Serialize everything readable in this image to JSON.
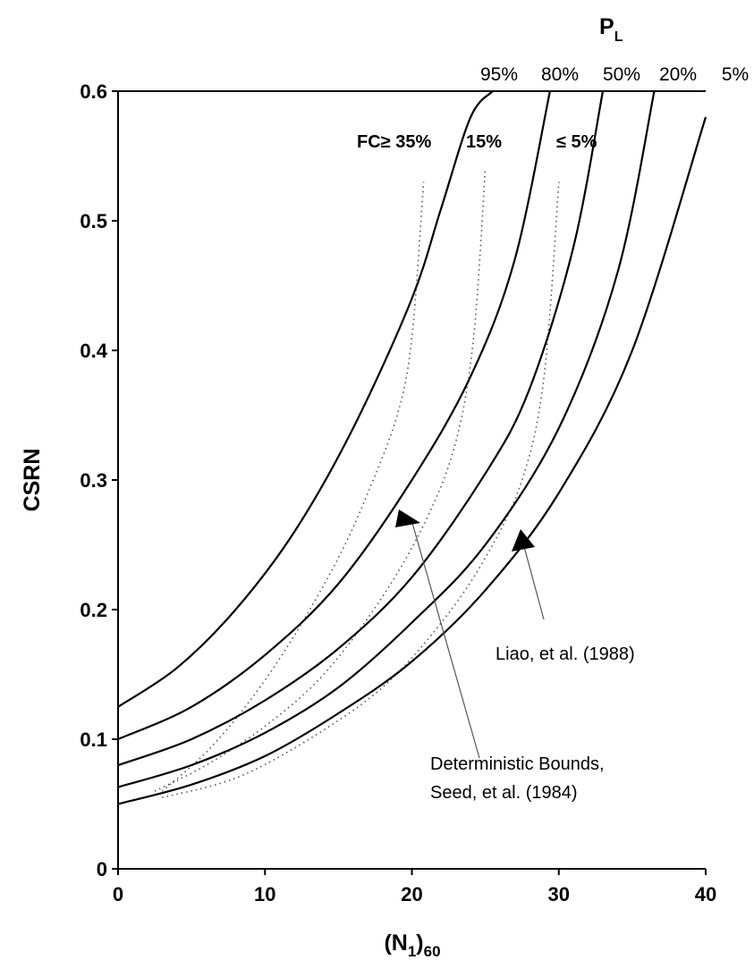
{
  "chart_data": {
    "type": "line",
    "title": "",
    "xlabel": "(N1)60",
    "ylabel": "CSRN",
    "xlim": [
      0,
      40
    ],
    "ylim": [
      0,
      0.6
    ],
    "x_ticks": [
      "0",
      "10",
      "20",
      "30",
      "40"
    ],
    "y_ticks": [
      "0",
      "0.1",
      "0.2",
      "0.3",
      "0.4",
      "0.5",
      "0.6"
    ],
    "grid": false,
    "legend": "none",
    "top_label": {
      "main": "P",
      "sub": "L"
    },
    "probability_curves": [
      {
        "label": "95%",
        "x": [
          0,
          4,
          8,
          12,
          16,
          20,
          22,
          24,
          25.5
        ],
        "y": [
          0.125,
          0.155,
          0.2,
          0.26,
          0.34,
          0.44,
          0.51,
          0.58,
          0.6
        ]
      },
      {
        "label": "80%",
        "x": [
          0,
          5,
          10,
          15,
          20,
          24,
          27,
          29.4
        ],
        "y": [
          0.1,
          0.125,
          0.165,
          0.22,
          0.3,
          0.38,
          0.47,
          0.6
        ]
      },
      {
        "label": "50%",
        "x": [
          0,
          5,
          10,
          15,
          20,
          25,
          28,
          31,
          33
        ],
        "y": [
          0.08,
          0.1,
          0.13,
          0.17,
          0.225,
          0.305,
          0.37,
          0.48,
          0.6
        ]
      },
      {
        "label": "20%",
        "x": [
          0,
          5,
          10,
          15,
          20,
          25,
          30,
          34,
          36.5
        ],
        "y": [
          0.063,
          0.08,
          0.105,
          0.14,
          0.19,
          0.25,
          0.34,
          0.46,
          0.6
        ]
      },
      {
        "label": "5%",
        "x": [
          0,
          5,
          10,
          15,
          20,
          25,
          30,
          35,
          40
        ],
        "y": [
          0.05,
          0.065,
          0.087,
          0.12,
          0.16,
          0.215,
          0.29,
          0.4,
          0.58
        ]
      }
    ],
    "deterministic_bounds": [
      {
        "label": "FC≥ 35%",
        "x": [
          3,
          6,
          9,
          12,
          15,
          17,
          19,
          20,
          20.8
        ],
        "y": [
          0.06,
          0.09,
          0.13,
          0.18,
          0.24,
          0.29,
          0.35,
          0.41,
          0.53
        ]
      },
      {
        "label": "15%",
        "x": [
          2.5,
          6,
          10,
          14,
          18,
          21,
          23,
          24.2,
          25
        ],
        "y": [
          0.06,
          0.08,
          0.11,
          0.15,
          0.21,
          0.27,
          0.33,
          0.41,
          0.54
        ]
      },
      {
        "label": "≤ 5%",
        "x": [
          3,
          8,
          13,
          18,
          22,
          25,
          27.5,
          29,
          30
        ],
        "y": [
          0.055,
          0.07,
          0.1,
          0.14,
          0.19,
          0.24,
          0.3,
          0.38,
          0.53
        ]
      }
    ],
    "annotations": {
      "liao": {
        "text": "Liao, et al. (1988)",
        "arrow_target": [
          27,
          0.255
        ]
      },
      "seed_line1": "Deterministic Bounds,",
      "seed_line2": "Seed, et al. (1984)",
      "seed_arrow_target": [
        19.5,
        0.27
      ]
    }
  }
}
